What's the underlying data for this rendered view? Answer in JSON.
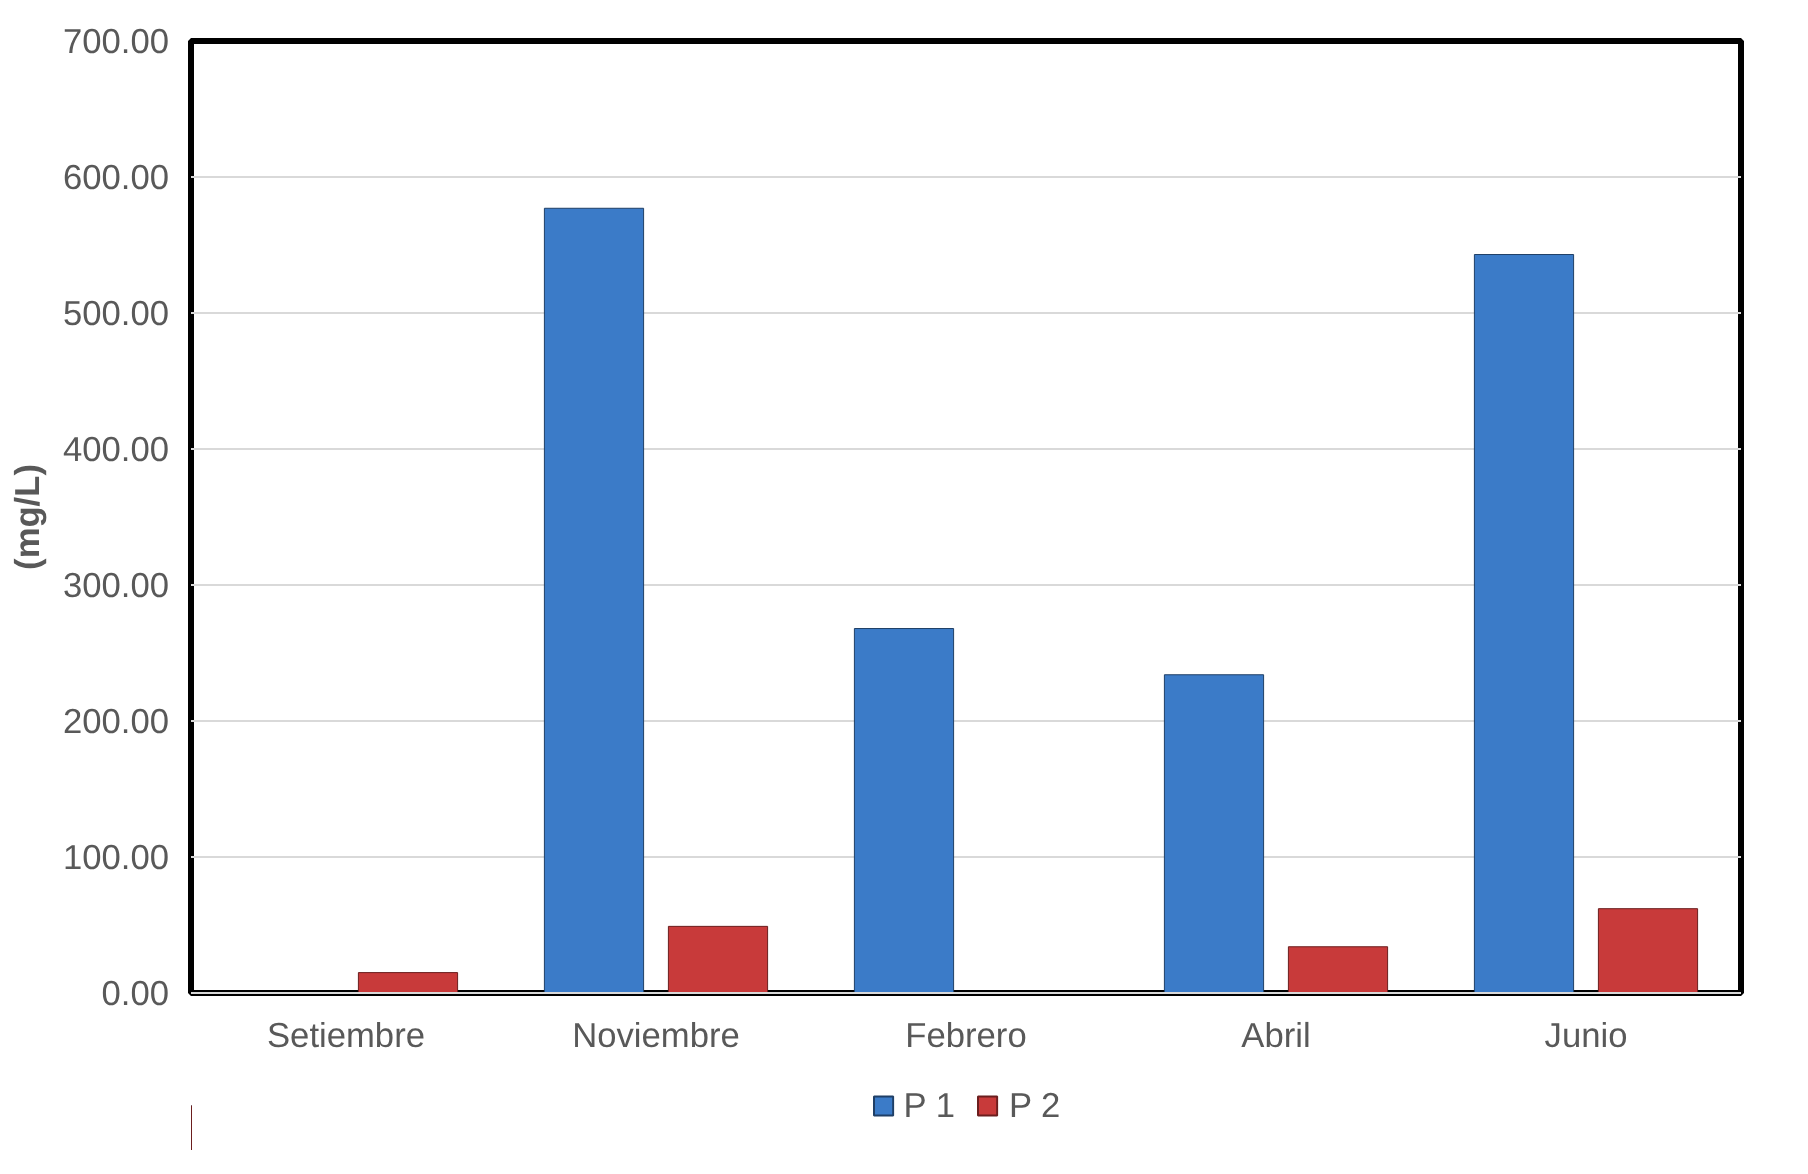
{
  "chart_data": {
    "type": "bar",
    "ylabel": "(mg/L)",
    "categories": [
      "Setiembre",
      "Noviembre",
      "Febrero",
      "Abril",
      "Junio"
    ],
    "series": [
      {
        "name": "P 1",
        "color": "#3b7bc8",
        "values": [
          null,
          577,
          268,
          234,
          543
        ]
      },
      {
        "name": "P 2",
        "color": "#c83a3a",
        "values": [
          15,
          49,
          null,
          34,
          62
        ]
      }
    ],
    "ylim": [
      0,
      700
    ],
    "yticks": [
      {
        "value": 0,
        "label": "0.00"
      },
      {
        "value": 100,
        "label": "100.00"
      },
      {
        "value": 200,
        "label": "200.00"
      },
      {
        "value": 300,
        "label": "300.00"
      },
      {
        "value": 400,
        "label": "400.00"
      },
      {
        "value": 500,
        "label": "500.00"
      },
      {
        "value": 600,
        "label": "600.00"
      },
      {
        "value": 700,
        "label": "700.00"
      }
    ],
    "grid": "y",
    "legend": "bottom"
  }
}
